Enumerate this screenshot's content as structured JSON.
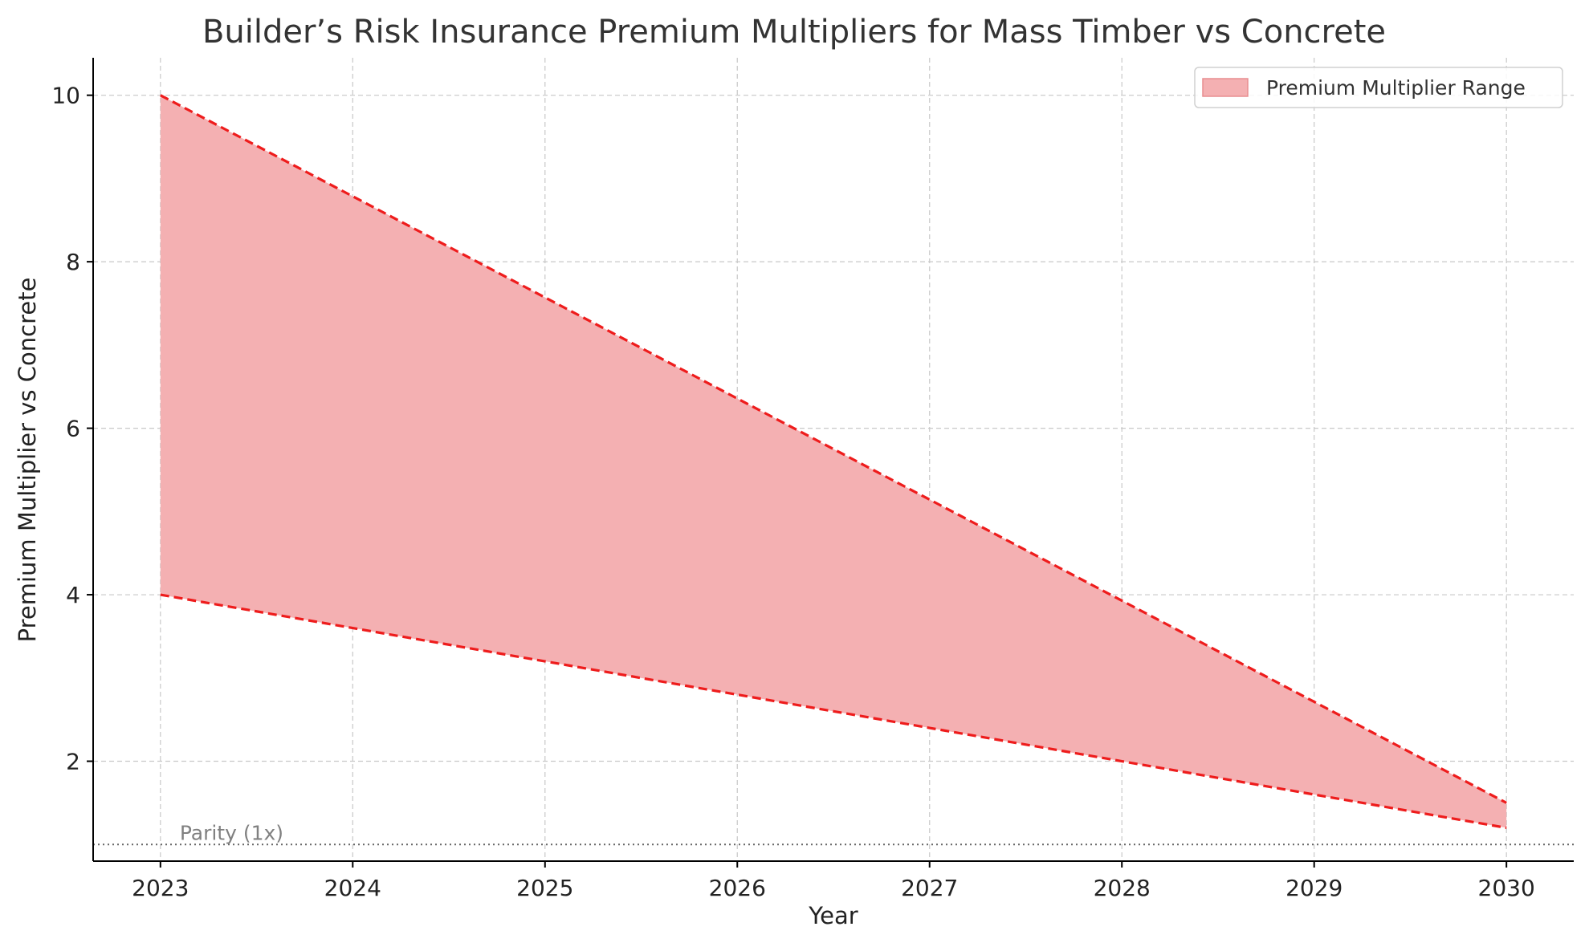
{
  "chart_data": {
    "type": "area",
    "title": "Builder’s Risk Insurance Premium Multipliers for Mass Timber vs Concrete",
    "xlabel": "Year",
    "ylabel": "Premium Multiplier vs Concrete",
    "x": [
      2023,
      2024,
      2025,
      2026,
      2027,
      2028,
      2029,
      2030
    ],
    "x_ticks": [
      "2023",
      "2024",
      "2025",
      "2026",
      "2027",
      "2028",
      "2029",
      "2030"
    ],
    "y_ticks": [
      "2",
      "4",
      "6",
      "8",
      "10"
    ],
    "y_tick_values": [
      2,
      4,
      6,
      8,
      10
    ],
    "xlim": [
      2022.65,
      2030.35
    ],
    "ylim": [
      0.8,
      10.45
    ],
    "grid": true,
    "legend_position": "top-right",
    "series": [
      {
        "name": "Premium Multiplier Range",
        "upper": [
          10.0,
          8.786,
          7.571,
          6.357,
          5.143,
          3.929,
          2.714,
          1.5
        ],
        "lower": [
          4.0,
          3.6,
          3.2,
          2.8,
          2.4,
          2.0,
          1.6,
          1.2
        ]
      }
    ],
    "reference_line": {
      "y": 1,
      "label": "Parity (1x)"
    },
    "colors": {
      "fill": "#f4b0b2",
      "boundary": "#ee1c1c",
      "reference": "#666666"
    }
  }
}
